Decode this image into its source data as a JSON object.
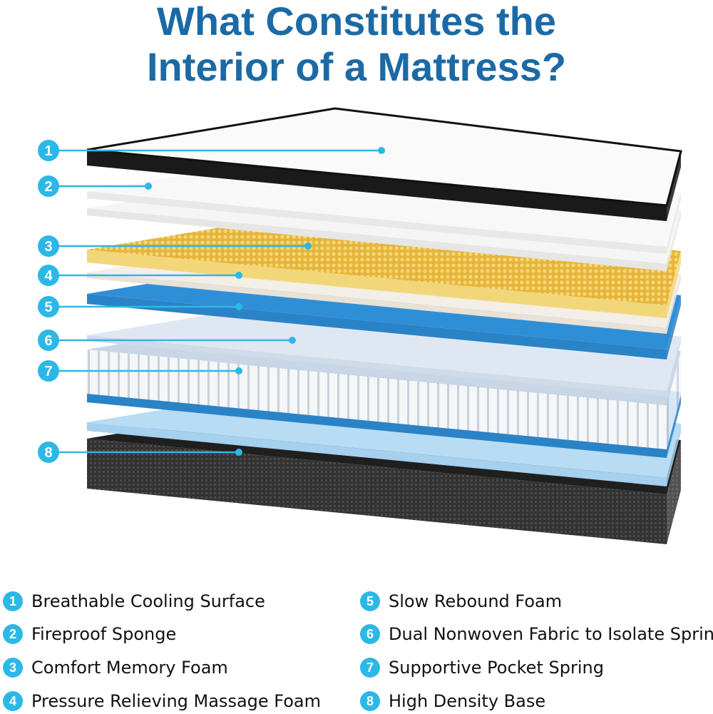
{
  "title": {
    "line1": "What Constitutes the",
    "line2": "Interior of a Mattress?"
  },
  "colors": {
    "title": "#1b6aa5",
    "badge": "#2cb8e6",
    "memory_foam": "#e6b43a",
    "blue_foam": "#2f8fd6",
    "base": "#2c2c2c"
  },
  "callouts": [
    "1",
    "2",
    "3",
    "4",
    "5",
    "6",
    "7",
    "8"
  ],
  "legend": [
    {
      "num": "1",
      "label": "Breathable Cooling Surface"
    },
    {
      "num": "2",
      "label": "Fireproof Sponge"
    },
    {
      "num": "3",
      "label": "Comfort Memory Foam"
    },
    {
      "num": "4",
      "label": "Pressure Relieving Massage Foam"
    },
    {
      "num": "5",
      "label": "Slow Rebound Foam"
    },
    {
      "num": "6",
      "label": "Dual Nonwoven Fabric to Isolate Spring"
    },
    {
      "num": "7",
      "label": "Supportive Pocket Spring"
    },
    {
      "num": "8",
      "label": "High Density Base"
    }
  ]
}
